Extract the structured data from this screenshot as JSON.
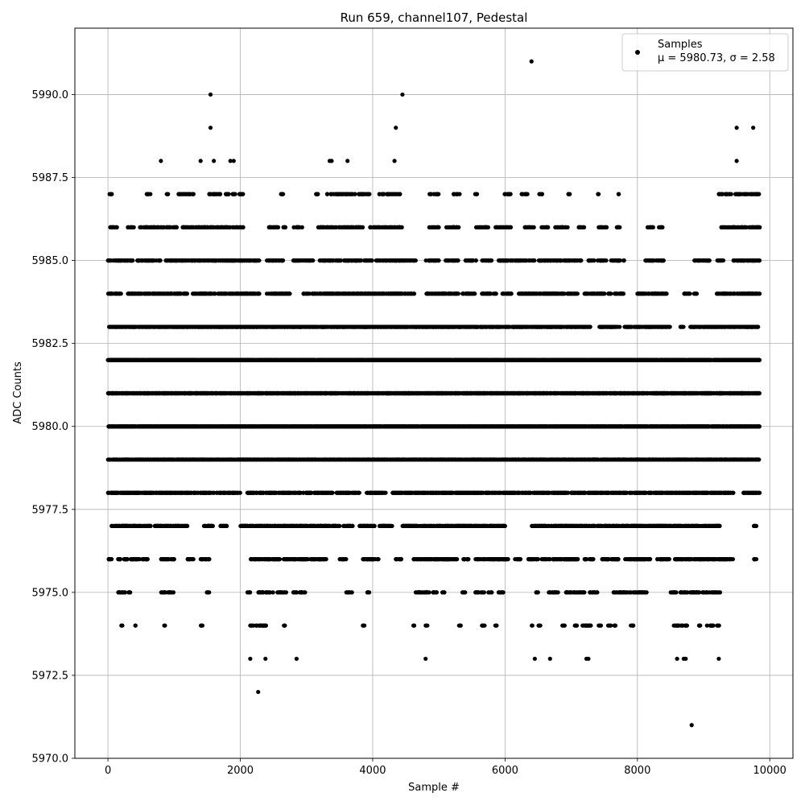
{
  "chart_data": {
    "type": "scatter",
    "title": "Run 659, channel107, Pedestal",
    "xlabel": "Sample #",
    "ylabel": "ADC Counts",
    "xlim": [
      -500,
      10350
    ],
    "ylim": [
      5970.0,
      5992.0
    ],
    "xticks": [
      0,
      2000,
      4000,
      6000,
      8000,
      10000
    ],
    "xtick_labels": [
      "0",
      "2000",
      "4000",
      "6000",
      "8000",
      "10000"
    ],
    "yticks": [
      5970.0,
      5972.5,
      5975.0,
      5977.5,
      5980.0,
      5982.5,
      5985.0,
      5987.5,
      5990.0
    ],
    "ytick_labels": [
      "5970.0",
      "5972.5",
      "5975.0",
      "5977.5",
      "5980.0",
      "5982.5",
      "5985.0",
      "5987.5",
      "5990.0"
    ],
    "grid": true,
    "legend_position": "top-right",
    "marker_color": "#000000",
    "series": [
      {
        "name": "Samples",
        "stats_label": "μ = 5980.73, σ = 2.58",
        "total_samples": 9850,
        "outliers": [
          {
            "x": 6400,
            "y": 5991
          },
          {
            "x": 1550,
            "y": 5990
          },
          {
            "x": 4450,
            "y": 5990
          },
          {
            "x": 1550,
            "y": 5989
          },
          {
            "x": 4350,
            "y": 5989
          },
          {
            "x": 9500,
            "y": 5989
          },
          {
            "x": 9750,
            "y": 5989
          },
          {
            "x": 800,
            "y": 5988
          },
          {
            "x": 1400,
            "y": 5988
          },
          {
            "x": 1600,
            "y": 5988
          },
          {
            "x": 1850,
            "y": 5988
          },
          {
            "x": 1900,
            "y": 5988
          },
          {
            "x": 3350,
            "y": 5988
          },
          {
            "x": 3380,
            "y": 5988
          },
          {
            "x": 3620,
            "y": 5988
          },
          {
            "x": 4330,
            "y": 5988
          },
          {
            "x": 9500,
            "y": 5988
          },
          {
            "x": 2270,
            "y": 5972
          },
          {
            "x": 8820,
            "y": 5971
          },
          {
            "x": 2150,
            "y": 5973
          },
          {
            "x": 2380,
            "y": 5973
          },
          {
            "x": 2850,
            "y": 5973
          },
          {
            "x": 4800,
            "y": 5973
          },
          {
            "x": 6450,
            "y": 5973
          },
          {
            "x": 6680,
            "y": 5973
          },
          {
            "x": 7230,
            "y": 5973
          },
          {
            "x": 7260,
            "y": 5973
          },
          {
            "x": 8600,
            "y": 5973
          },
          {
            "x": 8700,
            "y": 5973
          },
          {
            "x": 8730,
            "y": 5973
          },
          {
            "x": 9230,
            "y": 5973
          }
        ],
        "levels": [
          {
            "y": 5987,
            "points": 260,
            "segments": [
              [
                0,
                60
              ],
              [
                580,
                650
              ],
              [
                880,
                920
              ],
              [
                1060,
                1300
              ],
              [
                1520,
                2050
              ],
              [
                2580,
                2650
              ],
              [
                3120,
                3180
              ],
              [
                3300,
                3960
              ],
              [
                4100,
                4450
              ],
              [
                4850,
                5000
              ],
              [
                5200,
                5320
              ],
              [
                5540,
                5580
              ],
              [
                5980,
                6100
              ],
              [
                6240,
                6350
              ],
              [
                6500,
                6570
              ],
              [
                6950,
                7000
              ],
              [
                7400,
                7420
              ],
              [
                7700,
                7720
              ],
              [
                9230,
                9850
              ]
            ]
          },
          {
            "y": 5986,
            "points": 620,
            "segments": [
              [
                0,
                150
              ],
              [
                300,
                400
              ],
              [
                480,
                1040
              ],
              [
                1100,
                2060
              ],
              [
                2400,
                2600
              ],
              [
                2640,
                2700
              ],
              [
                2800,
                2940
              ],
              [
                3150,
                3850
              ],
              [
                3950,
                4450
              ],
              [
                4850,
                5000
              ],
              [
                5100,
                5300
              ],
              [
                5550,
                5750
              ],
              [
                5850,
                6100
              ],
              [
                6300,
                6450
              ],
              [
                6550,
                6650
              ],
              [
                6750,
                6950
              ],
              [
                7100,
                7200
              ],
              [
                7400,
                7550
              ],
              [
                7680,
                7750
              ],
              [
                8150,
                8250
              ],
              [
                8320,
                8400
              ],
              [
                9250,
                9850
              ]
            ]
          },
          {
            "y": 5985,
            "points": 980,
            "segments": [
              [
                0,
                380
              ],
              [
                420,
                800
              ],
              [
                850,
                2300
              ],
              [
                2400,
                2650
              ],
              [
                2800,
                3100
              ],
              [
                3200,
                4000
              ],
              [
                4050,
                4650
              ],
              [
                4800,
                5000
              ],
              [
                5100,
                5300
              ],
              [
                5400,
                5580
              ],
              [
                5650,
                5800
              ],
              [
                5900,
                6450
              ],
              [
                6500,
                7150
              ],
              [
                7250,
                7350
              ],
              [
                7400,
                7550
              ],
              [
                7600,
                7800
              ],
              [
                8100,
                8400
              ],
              [
                8850,
                9100
              ],
              [
                9200,
                9300
              ],
              [
                9400,
                9850
              ]
            ]
          },
          {
            "y": 5984,
            "points": 1150,
            "segments": [
              [
                0,
                200
              ],
              [
                300,
                1200
              ],
              [
                1280,
                2300
              ],
              [
                2400,
                2760
              ],
              [
                2950,
                4650
              ],
              [
                4800,
                5300
              ],
              [
                5350,
                5550
              ],
              [
                5650,
                5880
              ],
              [
                5950,
                6100
              ],
              [
                6200,
                7100
              ],
              [
                7200,
                7600
              ],
              [
                7650,
                7800
              ],
              [
                8000,
                8450
              ],
              [
                8700,
                8800
              ],
              [
                8850,
                8900
              ],
              [
                9200,
                9850
              ]
            ]
          },
          {
            "y": 5983,
            "points": 1750,
            "segments": [
              [
                0,
                2000
              ],
              [
                2000,
                2900
              ],
              [
                2900,
                5300
              ],
              [
                5300,
                6800
              ],
              [
                6800,
                7300
              ],
              [
                7400,
                7750
              ],
              [
                7800,
                7920
              ],
              [
                7950,
                8500
              ],
              [
                8650,
                8700
              ],
              [
                8800,
                9850
              ]
            ]
          },
          {
            "y": 5982,
            "points": 2600,
            "segments": [
              [
                0,
                9850
              ]
            ]
          },
          {
            "y": 5981,
            "points": 2700,
            "segments": [
              [
                0,
                9850
              ]
            ]
          },
          {
            "y": 5980,
            "points": 2300,
            "segments": [
              [
                0,
                9850
              ]
            ]
          },
          {
            "y": 5979,
            "points": 2350,
            "segments": [
              [
                0,
                9850
              ]
            ]
          },
          {
            "y": 5978,
            "points": 1500,
            "segments": [
              [
                0,
                2000
              ],
              [
                2100,
                3400
              ],
              [
                3450,
                3800
              ],
              [
                3900,
                4200
              ],
              [
                4300,
                9450
              ],
              [
                9600,
                9850
              ]
            ]
          },
          {
            "y": 5977,
            "points": 1250,
            "segments": [
              [
                50,
                650
              ],
              [
                700,
                1200
              ],
              [
                1450,
                1600
              ],
              [
                1700,
                1800
              ],
              [
                2000,
                3500
              ],
              [
                3550,
                3700
              ],
              [
                3800,
                4050
              ],
              [
                4100,
                4300
              ],
              [
                4450,
                6000
              ],
              [
                6400,
                9250
              ],
              [
                9750,
                9800
              ]
            ]
          },
          {
            "y": 5976,
            "points": 780,
            "segments": [
              [
                0,
                60
              ],
              [
                150,
                600
              ],
              [
                800,
                1000
              ],
              [
                1200,
                1300
              ],
              [
                1400,
                1550
              ],
              [
                2150,
                2600
              ],
              [
                2650,
                2850
              ],
              [
                2850,
                3300
              ],
              [
                3500,
                3600
              ],
              [
                3850,
                4100
              ],
              [
                4350,
                4450
              ],
              [
                4600,
                5300
              ],
              [
                5350,
                5450
              ],
              [
                5550,
                6050
              ],
              [
                6150,
                6250
              ],
              [
                6350,
                6500
              ],
              [
                6550,
                7100
              ],
              [
                7200,
                7350
              ],
              [
                7450,
                7750
              ],
              [
                7800,
                8200
              ],
              [
                8300,
                8500
              ],
              [
                8550,
                9450
              ],
              [
                9750,
                9800
              ]
            ]
          },
          {
            "y": 5975,
            "points": 360,
            "segments": [
              [
                150,
                350
              ],
              [
                800,
                1000
              ],
              [
                1480,
                1530
              ],
              [
                2100,
                2150
              ],
              [
                2250,
                2500
              ],
              [
                2550,
                2700
              ],
              [
                2800,
                3000
              ],
              [
                3600,
                3700
              ],
              [
                3900,
                3950
              ],
              [
                4650,
                5000
              ],
              [
                5050,
                5100
              ],
              [
                5350,
                5400
              ],
              [
                5550,
                5700
              ],
              [
                5750,
                5800
              ],
              [
                5900,
                6000
              ],
              [
                6450,
                6500
              ],
              [
                6650,
                6800
              ],
              [
                6900,
                7200
              ],
              [
                7250,
                7400
              ],
              [
                7600,
                8150
              ],
              [
                8500,
                8600
              ],
              [
                8650,
                9250
              ]
            ]
          },
          {
            "y": 5974,
            "points": 130,
            "segments": [
              [
                200,
                220
              ],
              [
                400,
                420
              ],
              [
                850,
                870
              ],
              [
                1400,
                1450
              ],
              [
                2150,
                2400
              ],
              [
                2650,
                2680
              ],
              [
                3850,
                3880
              ],
              [
                4600,
                4630
              ],
              [
                4800,
                4830
              ],
              [
                5300,
                5330
              ],
              [
                5650,
                5700
              ],
              [
                5850,
                5880
              ],
              [
                6400,
                6420
              ],
              [
                6500,
                6550
              ],
              [
                6850,
                6900
              ],
              [
                7050,
                7100
              ],
              [
                7150,
                7300
              ],
              [
                7400,
                7450
              ],
              [
                7550,
                7600
              ],
              [
                7650,
                7700
              ],
              [
                7900,
                7950
              ],
              [
                8550,
                8750
              ],
              [
                8900,
                8950
              ],
              [
                9050,
                9150
              ],
              [
                9200,
                9250
              ]
            ]
          }
        ]
      }
    ]
  }
}
